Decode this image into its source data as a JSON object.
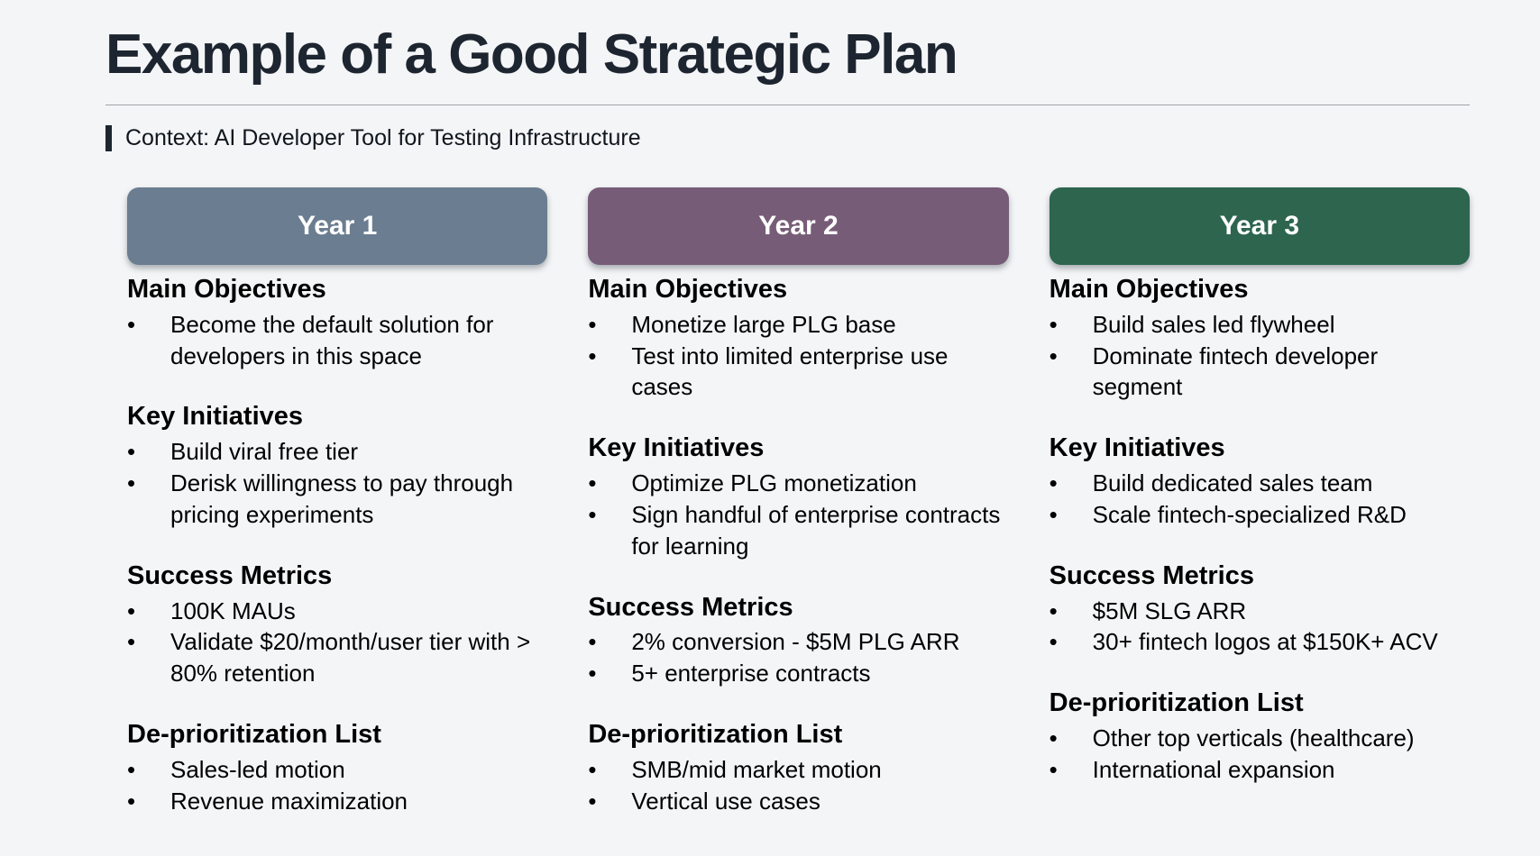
{
  "slide": {
    "title": "Example of a Good Strategic Plan",
    "context": "Context: AI Developer Tool for Testing Infrastructure",
    "bullet_char": "•"
  },
  "colors": {
    "background": "#f4f5f7",
    "title_text": "#1d2530",
    "context_accent": "#1d2530",
    "divider": "#9fa2a6",
    "header_text": "#ffffff",
    "year1_header": "#6b7d90",
    "year2_header": "#775c77",
    "year3_header": "#2d654f"
  },
  "columns": [
    {
      "header": "Year 1",
      "header_color": "#6b7d90",
      "sections": [
        {
          "heading": "Main Objectives",
          "bullets": [
            "Become the default solution for developers in this space"
          ]
        },
        {
          "heading": "Key Initiatives",
          "bullets": [
            "Build viral free tier",
            "Derisk willingness to pay through pricing experiments"
          ]
        },
        {
          "heading": "Success Metrics",
          "bullets": [
            "100K MAUs",
            "Validate $20/month/user tier with > 80% retention"
          ]
        },
        {
          "heading": "De-prioritization List",
          "bullets": [
            "Sales-led motion",
            "Revenue maximization"
          ]
        }
      ]
    },
    {
      "header": "Year 2",
      "header_color": "#775c77",
      "sections": [
        {
          "heading": "Main Objectives",
          "bullets": [
            "Monetize large PLG base",
            "Test into limited enterprise use cases"
          ]
        },
        {
          "heading": "Key Initiatives",
          "bullets": [
            "Optimize PLG monetization",
            "Sign handful of enterprise contracts for learning"
          ]
        },
        {
          "heading": "Success Metrics",
          "bullets": [
            "2% conversion - $5M PLG ARR",
            "5+ enterprise contracts"
          ]
        },
        {
          "heading": "De-prioritization List",
          "bullets": [
            "SMB/mid market motion",
            "Vertical use cases"
          ]
        }
      ]
    },
    {
      "header": "Year 3",
      "header_color": "#2d654f",
      "sections": [
        {
          "heading": "Main Objectives",
          "bullets": [
            "Build sales led flywheel",
            "Dominate fintech developer segment"
          ]
        },
        {
          "heading": "Key Initiatives",
          "bullets": [
            "Build dedicated sales team",
            "Scale fintech-specialized R&D"
          ]
        },
        {
          "heading": "Success Metrics",
          "bullets": [
            "$5M SLG ARR",
            "30+ fintech logos at $150K+ ACV"
          ]
        },
        {
          "heading": "De-prioritization List",
          "bullets": [
            "Other top verticals (healthcare)",
            "International expansion"
          ]
        }
      ]
    }
  ]
}
